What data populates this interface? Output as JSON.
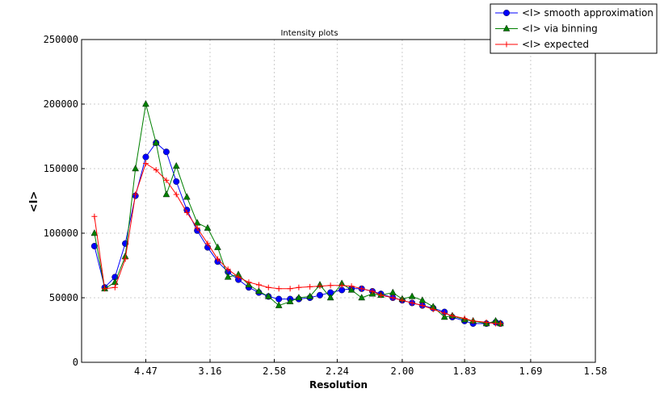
{
  "chart_data": {
    "type": "line",
    "title": "Intensity plots",
    "xlabel": "Resolution",
    "ylabel": "<I>",
    "x_scale": "reciprocal-square (linear in 1/d^2)",
    "xlim": [
      null,
      1.58
    ],
    "ylim": [
      0,
      250000
    ],
    "x_ticks": [
      "4.47",
      "3.16",
      "2.58",
      "2.24",
      "2.00",
      "1.83",
      "1.69",
      "1.58"
    ],
    "y_ticks": [
      "0",
      "50000",
      "100000",
      "150000",
      "200000",
      "250000"
    ],
    "grid": true,
    "legend_position": "top-right",
    "x": [
      10.0,
      7.45,
      6.2,
      5.42,
      4.88,
      4.47,
      4.15,
      3.89,
      3.68,
      3.49,
      3.33,
      3.19,
      3.07,
      2.96,
      2.86,
      2.77,
      2.69,
      2.62,
      2.55,
      2.48,
      2.43,
      2.37,
      2.32,
      2.27,
      2.22,
      2.18,
      2.14,
      2.1,
      2.07,
      2.03,
      2.0,
      1.97,
      1.94,
      1.91,
      1.88,
      1.86,
      1.83,
      1.81,
      1.78,
      1.76,
      1.75
    ],
    "series": [
      {
        "name": "<I> smooth approximation",
        "color": "#0000ff",
        "marker": "circle",
        "values": [
          90000,
          58000,
          66000,
          92000,
          129000,
          159000,
          170000,
          163000,
          140000,
          118000,
          102000,
          89000,
          78000,
          70000,
          64000,
          58000,
          54000,
          51000,
          49000,
          49000,
          49000,
          50000,
          52000,
          54000,
          56000,
          57000,
          57000,
          55000,
          53000,
          50000,
          48000,
          46000,
          44000,
          42000,
          39000,
          35000,
          32000,
          30000,
          30000,
          31000,
          30000
        ]
      },
      {
        "name": "<I> via binning",
        "color": "#008000",
        "marker": "triangle",
        "values": [
          100000,
          57000,
          62000,
          82000,
          150000,
          200000,
          170000,
          130000,
          152000,
          128000,
          108000,
          104000,
          89000,
          66000,
          68000,
          60000,
          55000,
          51000,
          44000,
          47000,
          50000,
          51000,
          60000,
          50000,
          61000,
          56000,
          50000,
          53000,
          52000,
          54000,
          49000,
          51000,
          48000,
          43000,
          35000,
          36000,
          33000,
          32000,
          30000,
          32000,
          30000
        ]
      },
      {
        "name": "<I> expected",
        "color": "#ff0000",
        "marker": "plus",
        "values": [
          113000,
          57000,
          58000,
          80000,
          130000,
          154000,
          149000,
          141000,
          130000,
          116000,
          104000,
          92000,
          80000,
          72000,
          66000,
          62000,
          60000,
          58000,
          57000,
          57000,
          58000,
          58500,
          59000,
          59500,
          59500,
          59000,
          57000,
          55000,
          52000,
          50000,
          48000,
          46000,
          44000,
          41000,
          38000,
          36000,
          34000,
          32000,
          31000,
          30000,
          30000
        ]
      }
    ]
  }
}
